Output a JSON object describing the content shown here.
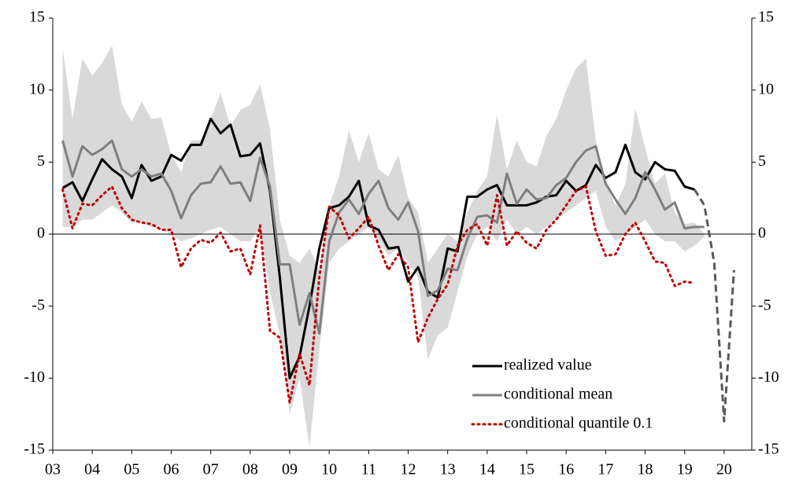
{
  "chart_data": {
    "type": "line",
    "x": [
      3.25,
      3.5,
      3.75,
      4,
      4.25,
      4.5,
      4.75,
      5,
      5.25,
      5.5,
      5.75,
      6,
      6.25,
      6.5,
      6.75,
      7,
      7.25,
      7.5,
      7.75,
      8,
      8.25,
      8.5,
      8.75,
      9,
      9.25,
      9.5,
      9.75,
      10,
      10.25,
      10.5,
      10.75,
      11,
      11.25,
      11.5,
      11.75,
      12,
      12.25,
      12.5,
      12.75,
      13,
      13.25,
      13.5,
      13.75,
      14,
      14.25,
      14.5,
      14.75,
      15,
      15.25,
      15.5,
      15.75,
      16,
      16.25,
      16.5,
      16.75,
      17,
      17.25,
      17.5,
      17.75,
      18,
      18.25,
      18.5,
      18.75,
      19,
      19.25,
      19.5,
      19.75,
      20,
      20.25
    ],
    "band": {
      "color": "#d9d9d9",
      "upper": [
        12.9,
        8.0,
        12.2,
        11.0,
        11.9,
        13.1,
        9.0,
        7.8,
        9.2,
        8.0,
        8.1,
        5.5,
        4.3,
        6.5,
        6.5,
        8.0,
        9.8,
        7.5,
        8.6,
        9.0,
        10.4,
        7.3,
        1.0,
        -1.5,
        -2.0,
        -1.0,
        -2.5,
        2.0,
        4.0,
        7.2,
        5.0,
        7.0,
        4.5,
        4.0,
        5.5,
        2.5,
        1.5,
        -2.0,
        -1.0,
        0.0,
        -0.5,
        1.5,
        3.0,
        4.0,
        8.3,
        4.5,
        6.5,
        5.0,
        4.7,
        6.8,
        8.0,
        10.0,
        11.5,
        12.2,
        6.5,
        3.5,
        2.0,
        3.5,
        8.7,
        6.0,
        3.5,
        4.2,
        1.5,
        0.7,
        0.8,
        0.0,
        null,
        null,
        null
      ],
      "lower": [
        0.5,
        0.5,
        1.0,
        1.0,
        1.5,
        2.0,
        1.5,
        0.8,
        0.8,
        0.5,
        0.3,
        0.0,
        -0.5,
        -0.3,
        0.0,
        0.3,
        0.5,
        0.0,
        -0.5,
        -0.5,
        0.5,
        -4.0,
        -7.0,
        -12.5,
        -10.0,
        -14.8,
        -8.0,
        -2.0,
        -1.0,
        -0.5,
        0.0,
        0.5,
        -0.5,
        -1.5,
        -1.0,
        -2.0,
        -3.0,
        -8.7,
        -7.0,
        -6.5,
        -4.0,
        -1.5,
        0.0,
        0.5,
        -0.5,
        1.0,
        0.0,
        0.5,
        0.0,
        0.5,
        1.0,
        1.5,
        2.0,
        2.5,
        3.0,
        0.5,
        -0.5,
        0.0,
        0.5,
        1.0,
        0.0,
        -0.5,
        -0.5,
        -1.2,
        -0.8,
        -0.2,
        null,
        null,
        null
      ]
    },
    "series": [
      {
        "name": "realized value",
        "color": "#000000",
        "style": "solid",
        "values": [
          3.2,
          3.6,
          2.3,
          3.8,
          5.2,
          4.5,
          4.0,
          2.5,
          4.8,
          3.7,
          4.0,
          5.5,
          5.1,
          6.2,
          6.2,
          8.0,
          7.0,
          7.6,
          5.4,
          5.5,
          6.3,
          3.0,
          -3.0,
          -10.0,
          -8.5,
          -5.0,
          -1.0,
          1.8,
          2.0,
          2.6,
          3.7,
          0.6,
          0.3,
          -1.0,
          -0.9,
          -3.3,
          -2.3,
          -4.0,
          -4.4,
          -1.0,
          -1.2,
          2.6,
          2.6,
          3.1,
          3.4,
          2.0,
          2.0,
          2.0,
          2.2,
          2.6,
          2.7,
          3.7,
          3.0,
          3.4,
          4.8,
          3.9,
          4.3,
          6.2,
          4.3,
          3.8,
          5.0,
          4.5,
          4.4,
          3.3,
          3.1,
          null,
          null,
          null,
          null
        ]
      },
      {
        "name": "conditional mean",
        "color": "#7f7f7f",
        "style": "solid",
        "values": [
          6.5,
          4.0,
          6.1,
          5.5,
          5.9,
          6.5,
          4.5,
          4.0,
          4.5,
          4.0,
          4.2,
          3.0,
          1.1,
          2.7,
          3.5,
          3.6,
          4.7,
          3.5,
          3.6,
          2.3,
          5.3,
          3.3,
          -2.1,
          -2.1,
          -6.3,
          -4.1,
          -6.9,
          -0.5,
          1.5,
          2.4,
          1.4,
          2.8,
          3.7,
          1.8,
          1.0,
          2.2,
          0.2,
          -4.3,
          -3.9,
          -2.4,
          -2.5,
          -0.3,
          1.2,
          1.3,
          0.8,
          4.2,
          2.1,
          3.1,
          2.4,
          2.5,
          3.4,
          3.9,
          5.0,
          5.8,
          6.1,
          3.5,
          2.4,
          1.4,
          2.5,
          4.3,
          3.1,
          1.7,
          2.2,
          0.4,
          0.5,
          0.5,
          null,
          null,
          null
        ]
      },
      {
        "name": "conditional quantile 0.1",
        "color": "#c00000",
        "style": "dotted",
        "values": [
          3.1,
          0.4,
          2.1,
          2.0,
          2.7,
          3.3,
          1.8,
          1.0,
          0.8,
          0.7,
          0.3,
          0.3,
          -2.3,
          -1.0,
          -0.4,
          -0.6,
          0.1,
          -1.2,
          -1.0,
          -2.8,
          0.6,
          -6.7,
          -7.2,
          -11.7,
          -8.3,
          -10.5,
          -3.0,
          1.9,
          1.3,
          -0.3,
          0.4,
          1.2,
          -0.8,
          -2.5,
          -1.4,
          -2.3,
          -7.5,
          -5.8,
          -4.5,
          -3.5,
          -0.8,
          0.3,
          0.7,
          -0.8,
          2.7,
          -0.8,
          0.2,
          -0.6,
          -1.0,
          0.3,
          1.0,
          2.0,
          3.0,
          3.3,
          0.2,
          -1.5,
          -1.4,
          0.0,
          0.8,
          -0.5,
          -1.9,
          -2.0,
          -3.6,
          -3.3,
          -3.4,
          null,
          null,
          null,
          null
        ]
      },
      {
        "color": "#595959",
        "style": "dashed",
        "values": [
          null,
          null,
          null,
          null,
          null,
          null,
          null,
          null,
          null,
          null,
          null,
          null,
          null,
          null,
          null,
          null,
          null,
          null,
          null,
          null,
          null,
          null,
          null,
          null,
          null,
          null,
          null,
          null,
          null,
          null,
          null,
          null,
          null,
          null,
          null,
          null,
          null,
          null,
          null,
          null,
          null,
          null,
          null,
          null,
          null,
          null,
          null,
          null,
          null,
          null,
          null,
          null,
          null,
          null,
          null,
          null,
          null,
          null,
          null,
          null,
          null,
          null,
          null,
          null,
          3.1,
          2.0,
          -2.0,
          -13.0,
          -2.5
        ]
      }
    ],
    "xlim": [
      3,
      20.7
    ],
    "xticks": [
      {
        "value": 3,
        "label": "03"
      },
      {
        "value": 4,
        "label": "04"
      },
      {
        "value": 5,
        "label": "05"
      },
      {
        "value": 6,
        "label": "06"
      },
      {
        "value": 7,
        "label": "07"
      },
      {
        "value": 8,
        "label": "08"
      },
      {
        "value": 9,
        "label": "09"
      },
      {
        "value": 10,
        "label": "10"
      },
      {
        "value": 11,
        "label": "11"
      },
      {
        "value": 12,
        "label": "12"
      },
      {
        "value": 13,
        "label": "13"
      },
      {
        "value": 14,
        "label": "14"
      },
      {
        "value": 15,
        "label": "15"
      },
      {
        "value": 16,
        "label": "16"
      },
      {
        "value": 17,
        "label": "17"
      },
      {
        "value": 18,
        "label": "18"
      },
      {
        "value": 19,
        "label": "19"
      },
      {
        "value": 20,
        "label": "20"
      }
    ],
    "ylim": [
      -15,
      15
    ],
    "yticks": [
      15,
      10,
      5,
      0,
      -5,
      -10,
      -15
    ],
    "y2lim": [
      -15,
      15
    ],
    "y2ticks": [
      15,
      10,
      5,
      0,
      -5,
      -10,
      -15
    ],
    "legend": "lower right"
  }
}
